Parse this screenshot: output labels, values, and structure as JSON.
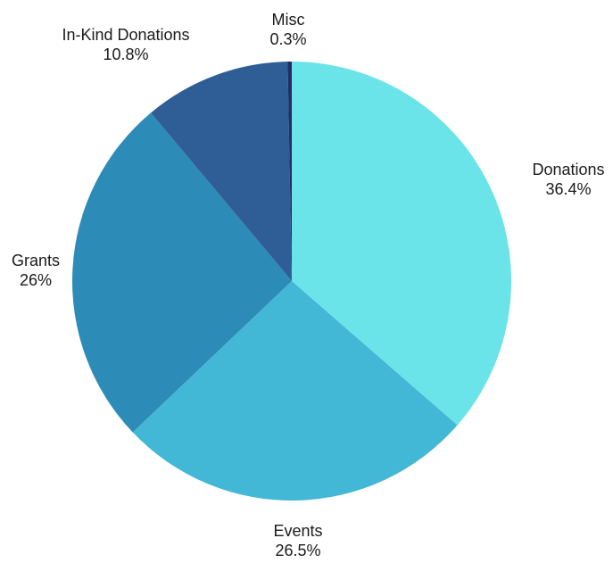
{
  "chart_data": {
    "type": "pie",
    "title": "",
    "start_angle_deg": 0,
    "direction": "clockwise",
    "slices": [
      {
        "label": "Donations",
        "value": 36.4,
        "value_label": "36.4%",
        "color": "#6AE4E8"
      },
      {
        "label": "Events",
        "value": 26.5,
        "value_label": "26.5%",
        "color": "#43B8D6"
      },
      {
        "label": "Grants",
        "value": 26.0,
        "value_label": "26%",
        "color": "#2D8BB7"
      },
      {
        "label": "In-Kind Donations",
        "value": 10.8,
        "value_label": "10.8%",
        "color": "#2F5E96"
      },
      {
        "label": "Misc",
        "value": 0.3,
        "value_label": "0.3%",
        "color": "#252C66"
      }
    ],
    "legend": "none",
    "labels": "outside"
  }
}
